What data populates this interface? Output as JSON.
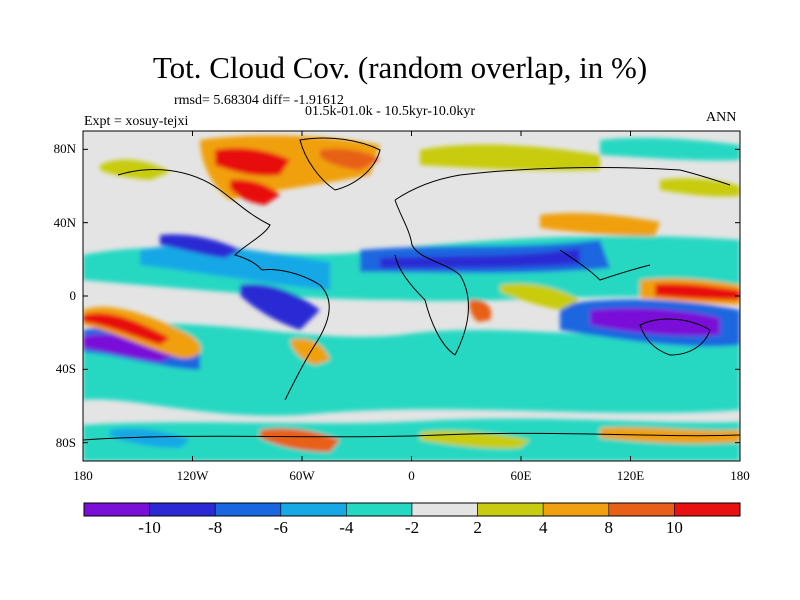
{
  "title": "Tot. Cloud Cov. (random overlap, in %)",
  "stats": {
    "rmsd_line": "rmsd= 5.68304  diff= -1.91612",
    "period": "01.5k-01.0k - 10.5kyr-10.0kyr",
    "expt": "Expt = xosuy-tejxi",
    "season": "ANN"
  },
  "map": {
    "lon_ticks": [
      "180",
      "120W",
      "60W",
      "0",
      "60E",
      "120E",
      "180"
    ],
    "lat_ticks": [
      "80N",
      "40N",
      "0",
      "40S",
      "80S"
    ],
    "lon_values": [
      -180,
      -120,
      -60,
      0,
      60,
      120,
      180
    ],
    "lat_values": [
      80,
      40,
      0,
      -40,
      -80
    ],
    "lat_range": [
      -90,
      90
    ]
  },
  "legend": {
    "labels": [
      "-10",
      "-8",
      "-6",
      "-4",
      "-2",
      "2",
      "4",
      "8",
      "10"
    ],
    "colors": [
      "#7a10d8",
      "#2a2ad4",
      "#1a66e0",
      "#17a8e6",
      "#25d8c2",
      "#e4e4e4",
      "#c8cc10",
      "#f0a010",
      "#e86018",
      "#e81010"
    ]
  },
  "chart_data": {
    "type": "heatmap",
    "title": "Tot. Cloud Cov. (random overlap, in %)",
    "xlabel": "",
    "ylabel": "",
    "xlim": [
      -180,
      180
    ],
    "ylim": [
      -90,
      90
    ],
    "levels": [
      -10,
      -8,
      -6,
      -4,
      -2,
      2,
      4,
      8,
      10
    ]
  }
}
